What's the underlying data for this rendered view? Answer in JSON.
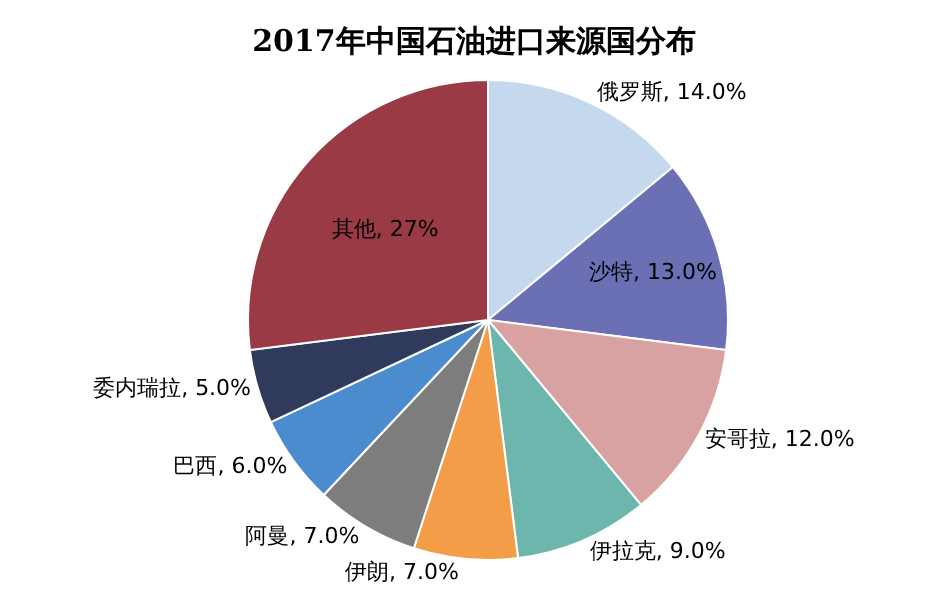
{
  "chart_data": {
    "type": "pie",
    "title": "2017年中国石油进口来源国分布",
    "categories": [
      "俄罗斯",
      "沙特",
      "安哥拉",
      "伊拉克",
      "伊朗",
      "阿曼",
      "巴西",
      "委内瑞拉",
      "其他"
    ],
    "values": [
      14.0,
      13.0,
      12.0,
      9.0,
      7.0,
      7.0,
      6.0,
      5.0,
      27
    ],
    "value_labels": [
      "14.0%",
      "13.0%",
      "12.0%",
      "9.0%",
      "7.0%",
      "7.0%",
      "6.0%",
      "5.0%",
      "27%"
    ],
    "colors": [
      "#c5d9ee",
      "#6b70b5",
      "#d9a2a2",
      "#6cb6ae",
      "#f39d48",
      "#7d7d7d",
      "#4a8cce",
      "#2f3a5c",
      "#9a3a44"
    ],
    "legend": false
  }
}
